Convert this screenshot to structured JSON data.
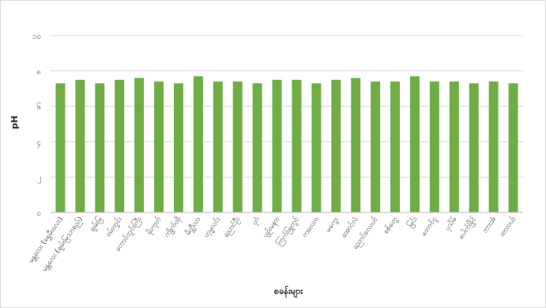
{
  "chart_data": {
    "type": "bar",
    "title": "",
    "xlabel": "စခန်းများ",
    "ylabel": "pH",
    "ylim": [
      0,
      10
    ],
    "yticks": [
      0,
      2,
      4,
      6,
      8,
      10
    ],
    "ytick_labels": [
      "၀",
      "၂",
      "၄",
      "၆",
      "၈",
      "၁၀"
    ],
    "grid": true,
    "legend": "none",
    "bar_color": "#70ad47",
    "categories": [
      "မန္တလေး (ရွှေမီးလေး)",
      "မန္တလေး (ချမ်းမြသာစည်)",
      "ချမ်းမြ",
      "ဝမ်းတွင်း",
      "တောင်တွင်းကြီး",
      "မိုးကုတ်",
      "ကျိုက်ထို",
      "မိတ္ထီလာ",
      "ဟုမ္မလင်း",
      "ညောင်ဦး",
      "ပုဂံ",
      "ပျဉ်းမနား",
      "ကြက်ဖြူတွင်",
      "ကလေးဝ",
      "မကွေး",
      "အောင်လံ",
      "ညောင်လေးပင်",
      "စစ်တွေ",
      "မြင်း",
      "တောင်ငူ",
      "ပုသိမ်",
      "ပေါက်ခြိုင်",
      "ဘားအံ",
      "ထားဝယ်"
    ],
    "values": [
      7.3,
      7.5,
      7.3,
      7.5,
      7.6,
      7.4,
      7.3,
      7.7,
      7.4,
      7.4,
      7.3,
      7.5,
      7.5,
      7.3,
      7.5,
      7.6,
      7.4,
      7.4,
      7.7,
      7.4,
      7.4,
      7.3,
      7.4,
      7.3
    ]
  }
}
